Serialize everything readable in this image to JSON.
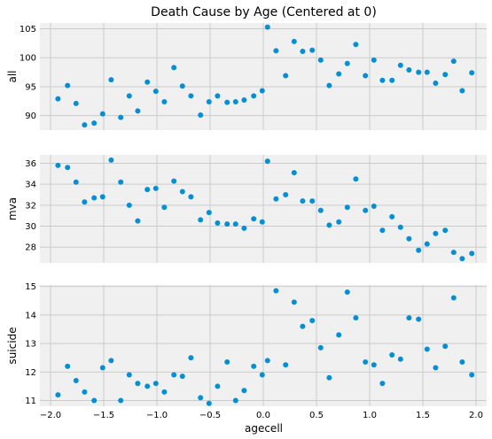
{
  "figure": {
    "title": "Death Cause by Age (Centered at 0)",
    "xlabel": "agecell",
    "x_ticks": [
      -2.0,
      -1.5,
      -1.0,
      -0.5,
      0.0,
      0.5,
      1.0,
      1.5,
      2.0
    ],
    "x_tick_labels": [
      "−2.0",
      "−1.5",
      "−1.0",
      "−0.5",
      "0.0",
      "0.5",
      "1.0",
      "1.5",
      "2.0"
    ],
    "background": "#f0f0f0",
    "grid_color": "#cbcbcb",
    "marker_color": "#008fd5"
  },
  "chart_data": [
    {
      "type": "scatter",
      "ylabel": "all",
      "xlim": [
        -2.1,
        2.1
      ],
      "ylim": [
        87.5,
        106
      ],
      "y_ticks": [
        90,
        95,
        100,
        105
      ],
      "grid": true,
      "x": [
        -1.93,
        -1.84,
        -1.76,
        -1.68,
        -1.59,
        -1.51,
        -1.43,
        -1.34,
        -1.26,
        -1.18,
        -1.09,
        -1.01,
        -0.93,
        -0.84,
        -0.76,
        -0.68,
        -0.59,
        -0.51,
        -0.43,
        -0.34,
        -0.26,
        -0.18,
        -0.09,
        -0.01,
        0.04,
        0.12,
        0.21,
        0.29,
        0.37,
        0.46,
        0.54,
        0.62,
        0.71,
        0.79,
        0.87,
        0.96,
        1.04,
        1.12,
        1.21,
        1.29,
        1.37,
        1.46,
        1.54,
        1.62,
        1.71,
        1.79,
        1.87,
        1.96
      ],
      "y": [
        92.9,
        95.2,
        92.1,
        88.4,
        88.7,
        90.3,
        96.2,
        89.7,
        93.4,
        90.8,
        95.8,
        94.2,
        92.4,
        98.3,
        95.1,
        93.4,
        90.1,
        92.4,
        93.4,
        92.3,
        92.4,
        92.7,
        93.4,
        94.3,
        105.3,
        101.2,
        96.9,
        102.8,
        101.1,
        101.3,
        99.6,
        95.2,
        97.2,
        99.0,
        102.3,
        96.9,
        99.6,
        96.1,
        96.1,
        98.7,
        97.9,
        97.5,
        97.5,
        95.6,
        97.1,
        99.4,
        94.3,
        97.4
      ]
    },
    {
      "type": "scatter",
      "ylabel": "mva",
      "xlim": [
        -2.1,
        2.1
      ],
      "ylim": [
        26.5,
        36.8
      ],
      "y_ticks": [
        28,
        30,
        32,
        34,
        36
      ],
      "grid": true,
      "x": [
        -1.93,
        -1.84,
        -1.76,
        -1.68,
        -1.59,
        -1.51,
        -1.43,
        -1.34,
        -1.26,
        -1.18,
        -1.09,
        -1.01,
        -0.93,
        -0.84,
        -0.76,
        -0.68,
        -0.59,
        -0.51,
        -0.43,
        -0.34,
        -0.26,
        -0.18,
        -0.09,
        -0.01,
        0.04,
        0.12,
        0.21,
        0.29,
        0.37,
        0.46,
        0.54,
        0.62,
        0.71,
        0.79,
        0.87,
        0.96,
        1.04,
        1.12,
        1.21,
        1.29,
        1.37,
        1.46,
        1.54,
        1.62,
        1.71,
        1.79,
        1.87,
        1.96
      ],
      "y": [
        35.8,
        35.6,
        34.2,
        32.3,
        32.7,
        32.8,
        36.3,
        34.2,
        32.0,
        30.5,
        33.5,
        33.6,
        31.8,
        34.3,
        33.3,
        32.8,
        30.6,
        31.3,
        30.3,
        30.2,
        30.2,
        29.8,
        30.7,
        30.4,
        36.2,
        32.6,
        33.0,
        35.1,
        32.4,
        32.4,
        31.5,
        30.1,
        30.4,
        31.8,
        34.5,
        31.5,
        31.9,
        29.6,
        30.9,
        29.9,
        28.8,
        27.7,
        28.3,
        29.3,
        29.6,
        27.5,
        26.9,
        27.4
      ]
    },
    {
      "type": "scatter",
      "ylabel": "suicide",
      "xlim": [
        -2.1,
        2.1
      ],
      "ylim": [
        10.8,
        15.05
      ],
      "y_ticks": [
        11,
        12,
        13,
        14,
        15
      ],
      "grid": true,
      "x": [
        -1.93,
        -1.84,
        -1.76,
        -1.68,
        -1.59,
        -1.51,
        -1.43,
        -1.34,
        -1.26,
        -1.18,
        -1.09,
        -1.01,
        -0.93,
        -0.84,
        -0.76,
        -0.68,
        -0.59,
        -0.51,
        -0.43,
        -0.34,
        -0.26,
        -0.18,
        -0.09,
        -0.01,
        0.04,
        0.12,
        0.21,
        0.29,
        0.37,
        0.46,
        0.54,
        0.62,
        0.71,
        0.79,
        0.87,
        0.96,
        1.04,
        1.12,
        1.21,
        1.29,
        1.37,
        1.46,
        1.54,
        1.62,
        1.71,
        1.79,
        1.87,
        1.96
      ],
      "y": [
        11.2,
        12.2,
        11.7,
        11.3,
        11.0,
        12.15,
        12.4,
        11.0,
        11.9,
        11.6,
        11.5,
        11.6,
        11.3,
        11.9,
        11.85,
        12.5,
        11.1,
        10.9,
        11.5,
        12.35,
        11.0,
        11.35,
        12.2,
        11.9,
        12.4,
        14.85,
        12.25,
        14.45,
        13.6,
        13.8,
        12.85,
        11.8,
        13.3,
        14.8,
        13.9,
        12.35,
        12.25,
        11.6,
        12.6,
        12.45,
        13.9,
        13.85,
        12.8,
        12.15,
        12.9,
        14.6,
        12.35,
        11.9
      ]
    }
  ]
}
